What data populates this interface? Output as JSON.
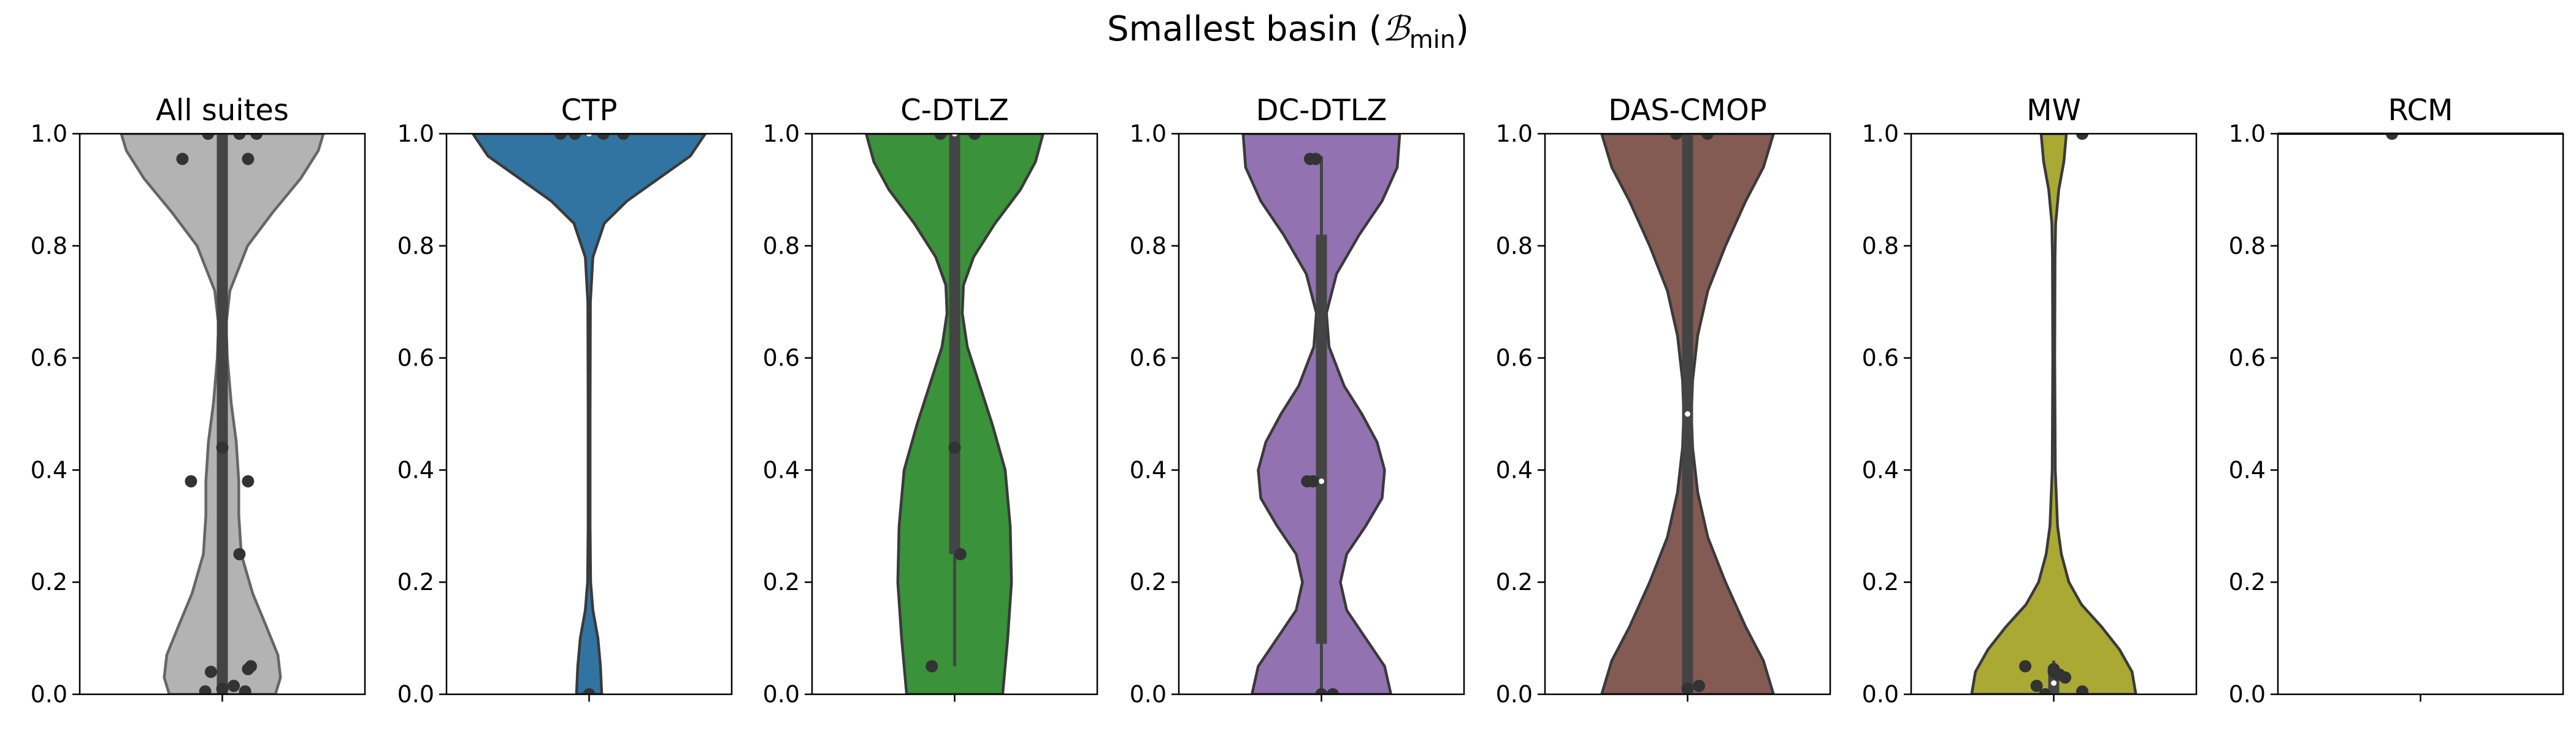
{
  "figure": {
    "title_main": "Smallest basin (",
    "title_symbol": "ℬ",
    "title_subscript": "min",
    "title_close": ")"
  },
  "chart_data": {
    "type": "violin",
    "title": "Smallest basin (ℬmin)",
    "ylim": [
      0,
      1
    ],
    "yticks": [
      "0.0",
      "0.2",
      "0.4",
      "0.6",
      "0.8",
      "1.0"
    ],
    "ytick_values": [
      0.0,
      0.2,
      0.4,
      0.6,
      0.8,
      1.0
    ],
    "grid": false,
    "panels": [
      {
        "name": "All suites",
        "color": "#b3b3b3",
        "edge": "#666666",
        "density": [
          [
            0.0,
            0.42
          ],
          [
            0.03,
            0.46
          ],
          [
            0.07,
            0.44
          ],
          [
            0.12,
            0.35
          ],
          [
            0.18,
            0.24
          ],
          [
            0.25,
            0.15
          ],
          [
            0.32,
            0.13
          ],
          [
            0.38,
            0.13
          ],
          [
            0.45,
            0.11
          ],
          [
            0.52,
            0.07
          ],
          [
            0.6,
            0.04
          ],
          [
            0.66,
            0.03
          ],
          [
            0.72,
            0.06
          ],
          [
            0.8,
            0.2
          ],
          [
            0.86,
            0.4
          ],
          [
            0.92,
            0.62
          ],
          [
            0.97,
            0.76
          ],
          [
            1.0,
            0.8
          ]
        ],
        "q1": 0.0,
        "median": 0.0,
        "q3": 1.0,
        "whisker_low": 0.0,
        "whisker_high": 1.0,
        "points": [
          [
            0.0,
            0.01
          ],
          [
            -0.06,
            0.005
          ],
          [
            0.08,
            0.005
          ],
          [
            -0.04,
            0.04
          ],
          [
            0.04,
            0.015
          ],
          [
            0.1,
            0.05
          ],
          [
            0.09,
            0.045
          ],
          [
            0.06,
            0.25
          ],
          [
            -0.11,
            0.38
          ],
          [
            0.09,
            0.38
          ],
          [
            0.0,
            0.44
          ],
          [
            -0.14,
            0.955
          ],
          [
            0.09,
            0.955
          ],
          [
            -0.05,
            1.0
          ],
          [
            0.06,
            1.0
          ],
          [
            0.12,
            1.0
          ]
        ]
      },
      {
        "name": "CTP",
        "color": "#3274a1",
        "edge": "#3a3a3a",
        "density": [
          [
            0.0,
            0.1
          ],
          [
            0.05,
            0.09
          ],
          [
            0.1,
            0.07
          ],
          [
            0.15,
            0.03
          ],
          [
            0.2,
            0.012
          ],
          [
            0.3,
            0.008
          ],
          [
            0.5,
            0.008
          ],
          [
            0.7,
            0.01
          ],
          [
            0.78,
            0.03
          ],
          [
            0.84,
            0.12
          ],
          [
            0.88,
            0.3
          ],
          [
            0.92,
            0.55
          ],
          [
            0.96,
            0.8
          ],
          [
            1.0,
            0.92
          ]
        ],
        "q1": 1.0,
        "median": 1.0,
        "q3": 1.0,
        "whisker_low": 1.0,
        "whisker_high": 1.0,
        "points": [
          [
            0.0,
            0.0
          ],
          [
            -0.1,
            1.0
          ],
          [
            -0.05,
            1.0
          ],
          [
            0.05,
            1.0
          ],
          [
            0.12,
            1.0
          ]
        ]
      },
      {
        "name": "C-DTLZ",
        "color": "#3a923a",
        "edge": "#3a3a3a",
        "density": [
          [
            0.0,
            0.38
          ],
          [
            0.1,
            0.42
          ],
          [
            0.2,
            0.45
          ],
          [
            0.3,
            0.44
          ],
          [
            0.4,
            0.4
          ],
          [
            0.48,
            0.3
          ],
          [
            0.55,
            0.2
          ],
          [
            0.62,
            0.1
          ],
          [
            0.68,
            0.06
          ],
          [
            0.73,
            0.07
          ],
          [
            0.78,
            0.15
          ],
          [
            0.84,
            0.32
          ],
          [
            0.9,
            0.52
          ],
          [
            0.95,
            0.64
          ],
          [
            1.0,
            0.7
          ]
        ],
        "q1": 0.25,
        "median": 1.0,
        "q3": 1.0,
        "whisker_low": 0.05,
        "whisker_high": 1.0,
        "points": [
          [
            -0.08,
            0.05
          ],
          [
            0.02,
            0.25
          ],
          [
            0.0,
            0.44
          ],
          [
            -0.05,
            1.0
          ],
          [
            0.07,
            1.0
          ]
        ]
      },
      {
        "name": "DC-DTLZ",
        "color": "#9372b2",
        "edge": "#3a3a3a",
        "density": [
          [
            0.0,
            0.55
          ],
          [
            0.05,
            0.5
          ],
          [
            0.1,
            0.35
          ],
          [
            0.15,
            0.2
          ],
          [
            0.2,
            0.15
          ],
          [
            0.25,
            0.2
          ],
          [
            0.3,
            0.35
          ],
          [
            0.35,
            0.48
          ],
          [
            0.4,
            0.5
          ],
          [
            0.45,
            0.44
          ],
          [
            0.5,
            0.32
          ],
          [
            0.55,
            0.18
          ],
          [
            0.62,
            0.06
          ],
          [
            0.68,
            0.04
          ],
          [
            0.75,
            0.12
          ],
          [
            0.82,
            0.3
          ],
          [
            0.88,
            0.48
          ],
          [
            0.94,
            0.6
          ],
          [
            1.0,
            0.62
          ]
        ],
        "q1": 0.09,
        "median": 0.38,
        "q3": 0.82,
        "whisker_low": 0.0,
        "whisker_high": 0.96,
        "points": [
          [
            0.0,
            0.0
          ],
          [
            0.04,
            0.0
          ],
          [
            -0.03,
            0.38
          ],
          [
            -0.05,
            0.38
          ],
          [
            -0.04,
            0.955
          ],
          [
            -0.02,
            0.955
          ]
        ]
      },
      {
        "name": "DAS-CMOP",
        "color": "#845b53",
        "edge": "#3a3a3a",
        "density": [
          [
            0.0,
            0.68
          ],
          [
            0.06,
            0.6
          ],
          [
            0.12,
            0.46
          ],
          [
            0.2,
            0.3
          ],
          [
            0.28,
            0.16
          ],
          [
            0.36,
            0.08
          ],
          [
            0.44,
            0.04
          ],
          [
            0.5,
            0.03
          ],
          [
            0.56,
            0.04
          ],
          [
            0.64,
            0.08
          ],
          [
            0.72,
            0.16
          ],
          [
            0.8,
            0.3
          ],
          [
            0.88,
            0.46
          ],
          [
            0.94,
            0.6
          ],
          [
            1.0,
            0.68
          ]
        ],
        "q1": 0.0,
        "median": 0.5,
        "q3": 1.0,
        "whisker_low": 0.0,
        "whisker_high": 1.0,
        "points": [
          [
            0.0,
            0.01
          ],
          [
            0.04,
            0.015
          ],
          [
            -0.04,
            1.0
          ],
          [
            0.07,
            1.0
          ]
        ]
      },
      {
        "name": "MW",
        "color": "#a9a934",
        "edge": "#3a3a3a",
        "density": [
          [
            0.0,
            0.65
          ],
          [
            0.04,
            0.62
          ],
          [
            0.08,
            0.52
          ],
          [
            0.12,
            0.38
          ],
          [
            0.16,
            0.22
          ],
          [
            0.2,
            0.12
          ],
          [
            0.25,
            0.06
          ],
          [
            0.3,
            0.03
          ],
          [
            0.4,
            0.012
          ],
          [
            0.6,
            0.008
          ],
          [
            0.78,
            0.01
          ],
          [
            0.84,
            0.015
          ],
          [
            0.9,
            0.04
          ],
          [
            0.95,
            0.08
          ],
          [
            1.0,
            0.1
          ]
        ],
        "q1": 0.0,
        "median": 0.02,
        "q3": 0.04,
        "whisker_low": 0.0,
        "whisker_high": 0.06,
        "points": [
          [
            -0.1,
            0.05
          ],
          [
            -0.06,
            0.015
          ],
          [
            -0.03,
            0.0
          ],
          [
            0.0,
            0.04
          ],
          [
            0.02,
            0.035
          ],
          [
            0.04,
            0.03
          ],
          [
            0.0,
            0.045
          ],
          [
            0.1,
            0.005
          ],
          [
            0.1,
            1.0
          ]
        ]
      },
      {
        "name": "RCM",
        "color": "#c9c9c9",
        "edge": "#3a3a3a",
        "density": [],
        "flat_line": 1.0,
        "points": [
          [
            -0.1,
            1.0
          ]
        ]
      }
    ]
  }
}
